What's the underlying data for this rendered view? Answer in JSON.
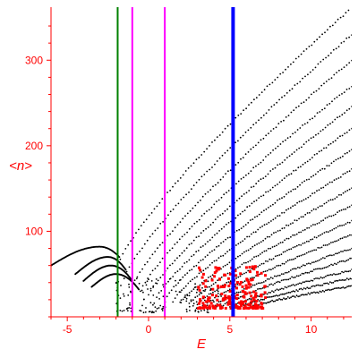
{
  "chart_data": {
    "type": "scatter",
    "title": "",
    "xlabel": "E",
    "ylabel": "<n>",
    "xlim": [
      -6.0,
      12.5
    ],
    "ylim": [
      0,
      362
    ],
    "xticks": [
      -5,
      0,
      5,
      10
    ],
    "yticks": [
      100,
      200,
      300
    ],
    "grid": false,
    "legend": "none",
    "colors": {
      "axis": "#ff0000",
      "points": "#000000",
      "highlight": "#ff0000",
      "green_line": "#008000",
      "magenta_line": "#ff00ff",
      "blue_line": "#0000ff"
    },
    "vertical_lines": [
      {
        "x": -1.9,
        "color": "#008000"
      },
      {
        "x": -1.0,
        "color": "#ff00ff"
      },
      {
        "x": 1.0,
        "color": "#ff00ff"
      },
      {
        "x": 5.2,
        "color": "#0000ff",
        "thick": true
      }
    ],
    "curves_upper": [
      {
        "x_start": -1.9,
        "y_start": 60,
        "x_end": 12.3,
        "y_end": 358
      },
      {
        "x_start": -1.5,
        "y_start": 45,
        "x_end": 12.5,
        "y_end": 330
      },
      {
        "x_start": -1.0,
        "y_start": 35,
        "x_end": 12.5,
        "y_end": 300
      },
      {
        "x_start": -0.5,
        "y_start": 30,
        "x_end": 12.5,
        "y_end": 270
      },
      {
        "x_start": 0.0,
        "y_start": 25,
        "x_end": 12.5,
        "y_end": 245
      },
      {
        "x_start": 0.5,
        "y_start": 22,
        "x_end": 12.5,
        "y_end": 220
      },
      {
        "x_start": 1.0,
        "y_start": 20,
        "x_end": 12.5,
        "y_end": 195
      },
      {
        "x_start": 1.5,
        "y_start": 18,
        "x_end": 12.5,
        "y_end": 172
      },
      {
        "x_start": 2.0,
        "y_start": 16,
        "x_end": 12.5,
        "y_end": 150
      },
      {
        "x_start": 2.5,
        "y_start": 15,
        "x_end": 12.5,
        "y_end": 130
      },
      {
        "x_start": 3.0,
        "y_start": 14,
        "x_end": 12.5,
        "y_end": 112
      },
      {
        "x_start": 3.5,
        "y_start": 13,
        "x_end": 12.5,
        "y_end": 96
      },
      {
        "x_start": 4.0,
        "y_start": 12,
        "x_end": 12.5,
        "y_end": 80
      },
      {
        "x_start": 4.5,
        "y_start": 12,
        "x_end": 12.5,
        "y_end": 68
      },
      {
        "x_start": 5.0,
        "y_start": 11,
        "x_end": 12.5,
        "y_end": 55
      },
      {
        "x_start": 5.5,
        "y_start": 11,
        "x_end": 12.5,
        "y_end": 45
      },
      {
        "x_start": 6.0,
        "y_start": 10,
        "x_end": 12.5,
        "y_end": 36
      }
    ],
    "curves_left": [
      {
        "x_start": -6.0,
        "y_start": 60,
        "x_peak": -3.0,
        "y_peak": 82,
        "x_end": -1.8,
        "y_end": 70
      },
      {
        "x_start": -4.5,
        "y_start": 50,
        "x_peak": -2.5,
        "y_peak": 70,
        "x_end": -1.4,
        "y_end": 55
      },
      {
        "x_start": -4.0,
        "y_start": 42,
        "x_peak": -2.3,
        "y_peak": 60,
        "x_end": -1.0,
        "y_end": 42
      },
      {
        "x_start": -3.5,
        "y_start": 35,
        "x_peak": -2.0,
        "y_peak": 50,
        "x_end": -0.6,
        "y_end": 32
      }
    ],
    "cloud_black": {
      "x_range": [
        -2.0,
        4.5
      ],
      "y_range": [
        5,
        45
      ],
      "count": 140
    },
    "cloud_red": {
      "x_range": [
        3.0,
        7.2
      ],
      "y_range": [
        10,
        60
      ],
      "count": 220
    }
  }
}
